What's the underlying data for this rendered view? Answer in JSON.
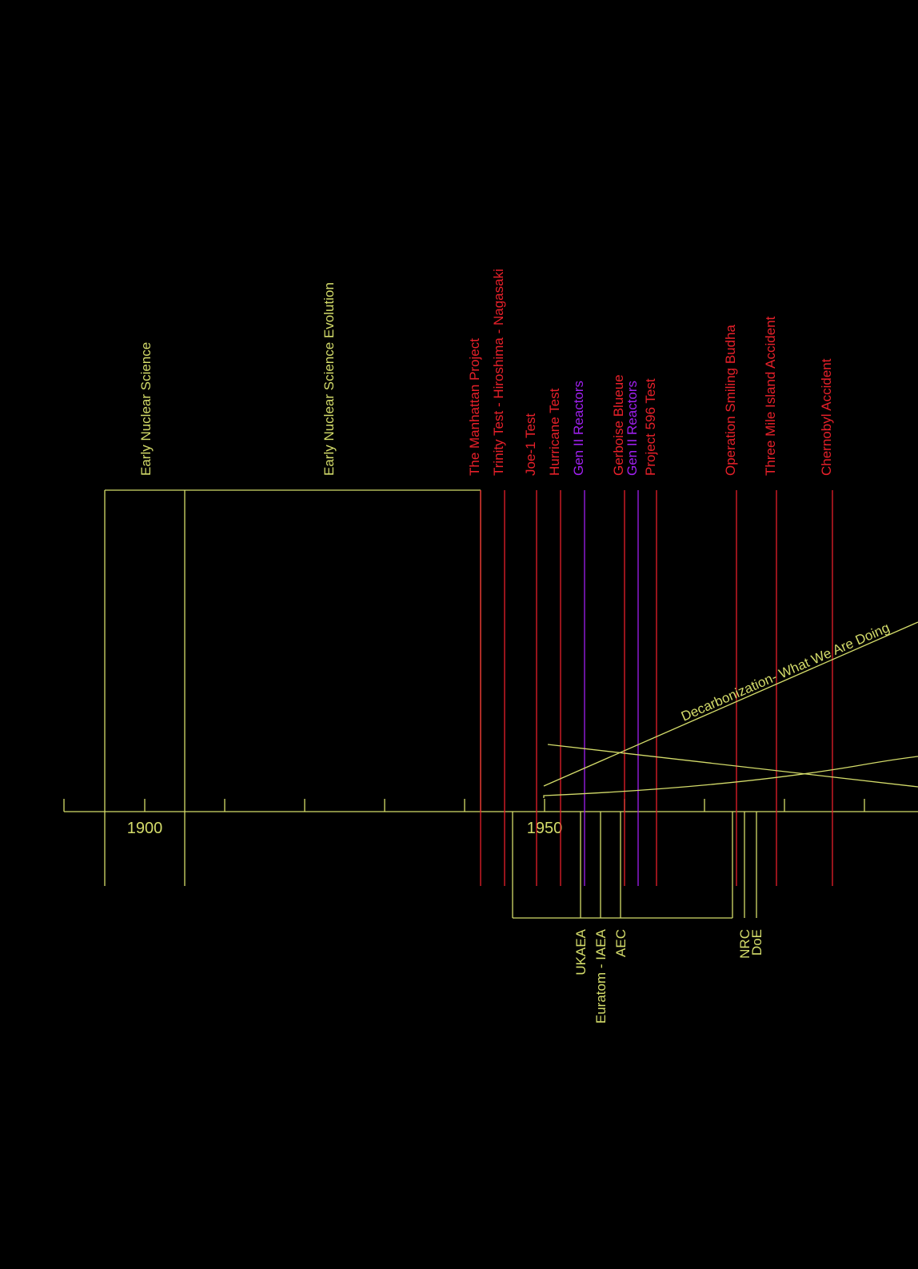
{
  "colors": {
    "background": "#000000",
    "science": "#d4dc6a",
    "event": "#e8202a",
    "reactor": "#a020f0",
    "agency": "#d4dc6a"
  },
  "axis": {
    "tick_labels": [
      {
        "year": 1900,
        "label": "1900"
      },
      {
        "year": 1950,
        "label": "1950"
      }
    ]
  },
  "periods": [
    {
      "label": "Early Nuclear Science",
      "start": 1895,
      "end": 1905
    },
    {
      "label": "Early Nuclear Science Evolution",
      "start": 1905,
      "end": 1942
    }
  ],
  "events": [
    {
      "label": "The Manhattan Project",
      "year": 1942,
      "kind": "event"
    },
    {
      "label": "Trinity Test - Hiroshima - Nagasaki",
      "year": 1945,
      "kind": "event"
    },
    {
      "label": "Joe-1 Test",
      "year": 1949,
      "kind": "event"
    },
    {
      "label": "Hurricane Test",
      "year": 1952,
      "kind": "event"
    },
    {
      "label": "Gen II Reactors",
      "year": 1955,
      "kind": "reactor"
    },
    {
      "label": "Gerboise Blueue",
      "year": 1960,
      "kind": "event"
    },
    {
      "label": "Gen II Reactors",
      "year": 1961.7,
      "kind": "reactor"
    },
    {
      "label": "Project 596 Test",
      "year": 1964,
      "kind": "event"
    },
    {
      "label": "Operation Smiling Budha",
      "year": 1974,
      "kind": "event"
    },
    {
      "label": "Three Mile Island Accident",
      "year": 1979,
      "kind": "event"
    },
    {
      "label": "Chernobyl Accident",
      "year": 1986,
      "kind": "event"
    }
  ],
  "agencies": [
    {
      "label": "UKAEA",
      "year": 1954.5
    },
    {
      "label": "Euratom - IAEA",
      "year": 1957
    },
    {
      "label": "AEC",
      "year": 1959.5
    },
    {
      "label": "NRC",
      "year": 1975
    },
    {
      "label": "DoE",
      "year": 1976.5
    }
  ],
  "trend": {
    "label": "Decarbonization- What We Are Doing"
  }
}
